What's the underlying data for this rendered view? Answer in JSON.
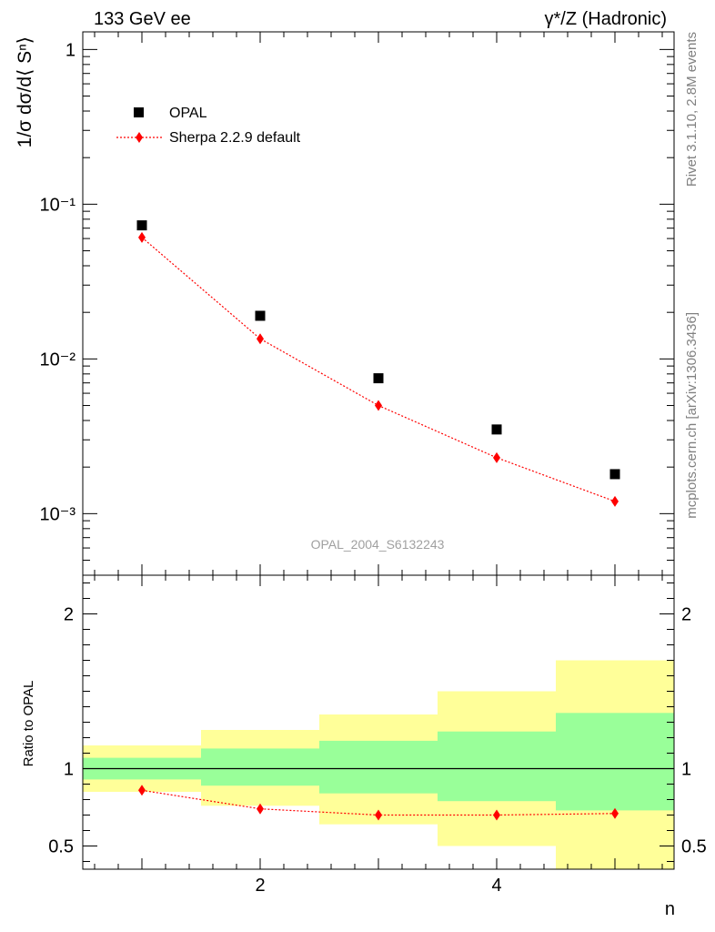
{
  "header": {
    "left": "133 GeV ee",
    "right": "γ*/Z (Hadronic)"
  },
  "side_text": {
    "top": "Rivet 3.1.10,  2.8M events",
    "bottom": "mcplots.cern.ch [arXiv:1306.3436]"
  },
  "watermark": "OPAL_2004_S6132243",
  "chart_data": [
    {
      "type": "scatter",
      "panel": "main",
      "ylabel": "1/σ dσ/d⟨ Sⁿ⟩",
      "yscale": "log",
      "ylim": [
        0.0004,
        1.3
      ],
      "xlim": [
        0.5,
        5.5
      ],
      "ytick_labels": [
        "10⁻³",
        "10⁻²",
        "10⁻¹",
        "1"
      ],
      "legend_position": "top-left",
      "series": [
        {
          "name": "OPAL",
          "x": [
            1,
            2,
            3,
            4,
            5
          ],
          "values": [
            0.073,
            0.019,
            0.0075,
            0.0035,
            0.0018
          ],
          "color": "#000000",
          "marker": "square"
        },
        {
          "name": "Sherpa 2.2.9 default",
          "x": [
            1,
            2,
            3,
            4,
            5
          ],
          "values": [
            0.061,
            0.0135,
            0.005,
            0.0023,
            0.0012
          ],
          "color": "#ff0000",
          "marker": "diamond",
          "line": "dotted"
        }
      ]
    },
    {
      "type": "scatter",
      "panel": "ratio",
      "ylabel": "Ratio to OPAL",
      "xlabel": "n",
      "ylim": [
        0.35,
        2.25
      ],
      "xlim": [
        0.5,
        5.5
      ],
      "xtick_labels": [
        "2",
        "4"
      ],
      "ytick_labels": [
        "0.5",
        "1",
        "2"
      ],
      "bands": [
        {
          "x0": 0.5,
          "x1": 1.5,
          "green": [
            0.93,
            1.07
          ],
          "yellow": [
            0.85,
            1.15
          ]
        },
        {
          "x0": 1.5,
          "x1": 2.5,
          "green": [
            0.89,
            1.13
          ],
          "yellow": [
            0.76,
            1.25
          ]
        },
        {
          "x0": 2.5,
          "x1": 3.5,
          "green": [
            0.84,
            1.18
          ],
          "yellow": [
            0.64,
            1.35
          ]
        },
        {
          "x0": 3.5,
          "x1": 4.5,
          "green": [
            0.79,
            1.24
          ],
          "yellow": [
            0.5,
            1.5
          ]
        },
        {
          "x0": 4.5,
          "x1": 5.5,
          "green": [
            0.73,
            1.36
          ],
          "yellow": [
            0.35,
            1.7
          ]
        }
      ],
      "series": [
        {
          "name": "Sherpa 2.2.9 default",
          "x": [
            1,
            2,
            3,
            4,
            5
          ],
          "values": [
            0.86,
            0.74,
            0.7,
            0.7,
            0.71
          ],
          "color": "#ff0000",
          "marker": "diamond",
          "line": "dotted"
        }
      ],
      "reference_line": 1
    }
  ]
}
